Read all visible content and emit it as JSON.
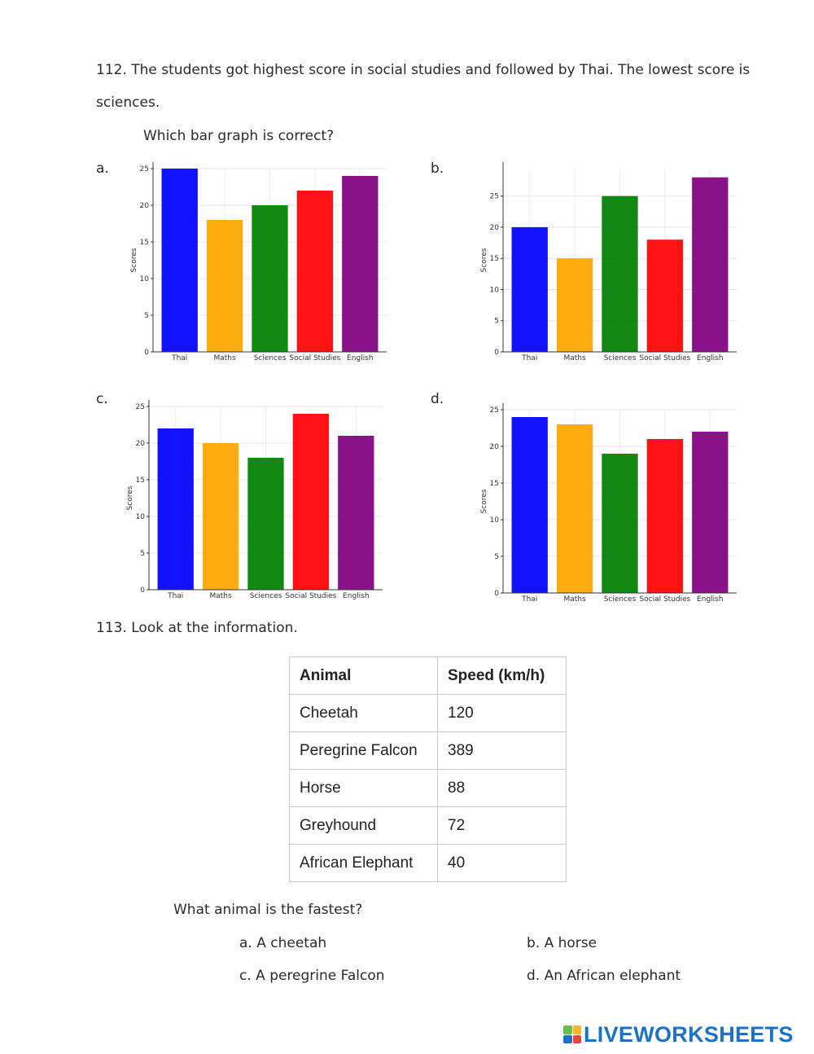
{
  "q112": {
    "prompt": "112. The students got highest score in social studies and followed by Thai. The lowest score is",
    "prompt_cont": "sciences.",
    "question": "Which bar graph is correct?"
  },
  "colors": {
    "Thai": "#0000ff",
    "Maths": "#ffa500",
    "Sciences": "#008000",
    "Social Studies": "#ff0000",
    "English": "#800080"
  },
  "chart_data": [
    {
      "option": "a.",
      "type": "bar",
      "categories": [
        "Thai",
        "Maths",
        "Sciences",
        "Social Studies",
        "English"
      ],
      "values": [
        25,
        18,
        20,
        22,
        24
      ],
      "ylabel": "Scores",
      "ylim": [
        0,
        25
      ],
      "yticks": [
        "0",
        "5",
        "10",
        "15",
        "20",
        "25"
      ],
      "grid": true
    },
    {
      "option": "b.",
      "type": "bar",
      "categories": [
        "Thai",
        "Maths",
        "Sciences",
        "Social Studies",
        "English"
      ],
      "values": [
        20,
        15,
        25,
        18,
        28
      ],
      "ylabel": "Scores",
      "ylim": [
        0,
        29.4
      ],
      "yticks": [
        "0",
        "5",
        "10",
        "15",
        "20",
        "25"
      ],
      "grid": true
    },
    {
      "option": "c.",
      "type": "bar",
      "categories": [
        "Thai",
        "Maths",
        "Sciences",
        "Social Studies",
        "English"
      ],
      "values": [
        22,
        20,
        18,
        24,
        21
      ],
      "ylabel": "Scores",
      "ylim": [
        0,
        25
      ],
      "yticks": [
        "0",
        "5",
        "10",
        "15",
        "20",
        "25"
      ],
      "grid": true
    },
    {
      "option": "d.",
      "type": "bar",
      "categories": [
        "Thai",
        "Maths",
        "Sciences",
        "Social Studies",
        "English"
      ],
      "values": [
        24,
        23,
        19,
        21,
        22
      ],
      "ylabel": "Scores",
      "ylim": [
        0,
        25
      ],
      "yticks": [
        "0",
        "5",
        "10",
        "15",
        "20",
        "25"
      ],
      "grid": true
    }
  ],
  "q113": {
    "prompt": "113. Look at the information.",
    "table": {
      "headers": [
        "Animal",
        "Speed (km/h)"
      ],
      "rows": [
        [
          "Cheetah",
          "120"
        ],
        [
          "Peregrine Falcon",
          "389"
        ],
        [
          "Horse",
          "88"
        ],
        [
          "Greyhound",
          "72"
        ],
        [
          "African Elephant",
          "40"
        ]
      ]
    },
    "question": "What animal is the fastest?",
    "options": [
      "a. A cheetah",
      "b. A horse",
      "c. A peregrine Falcon",
      "d. An African elephant"
    ]
  },
  "footer": {
    "brand": "LIVEWORKSHEETS",
    "logo_letters": [
      "L",
      "I",
      "V",
      "E"
    ]
  }
}
